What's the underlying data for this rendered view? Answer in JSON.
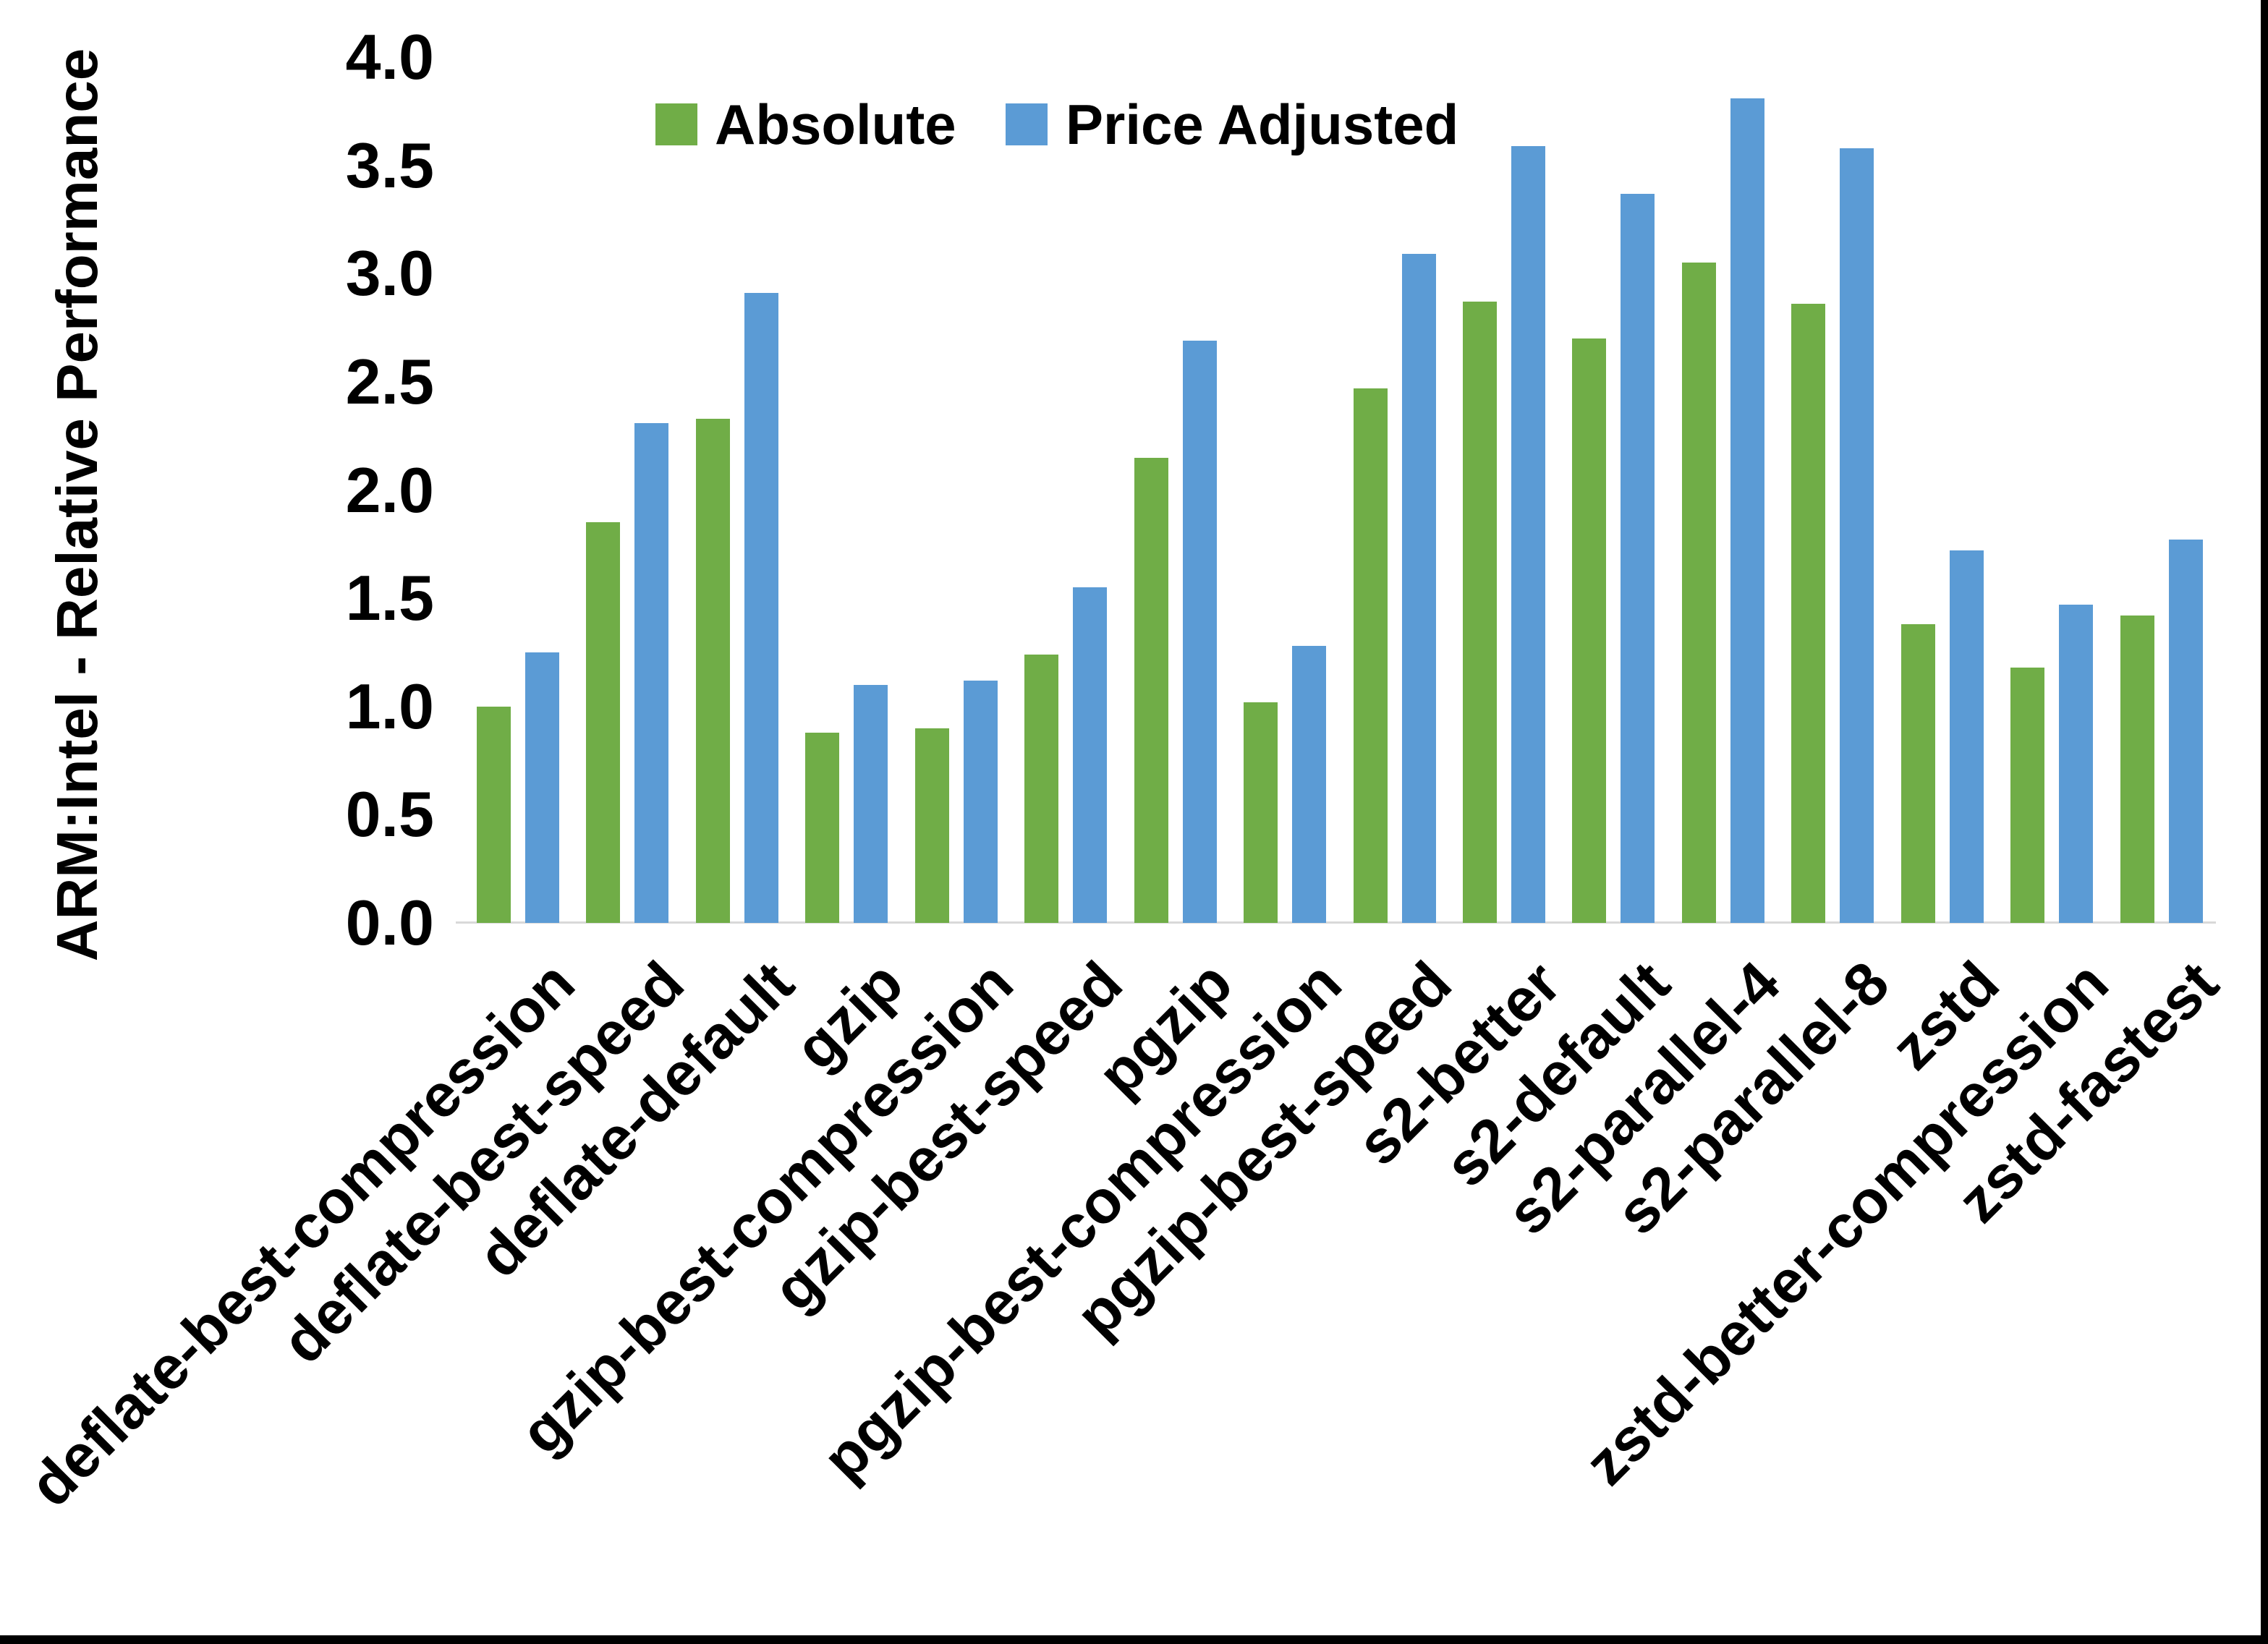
{
  "page": {
    "background": "#FFFFFF",
    "frame_color": "#000000"
  },
  "chart_data": {
    "type": "bar",
    "title": "",
    "ylabel": "ARM:Intel - Relative Performance",
    "xlabel": "",
    "ylim": [
      0.0,
      4.0
    ],
    "ytick_step": 0.5,
    "yticks": [
      "0.0",
      "0.5",
      "1.0",
      "1.5",
      "2.0",
      "2.5",
      "3.0",
      "3.5",
      "4.0"
    ],
    "grid": false,
    "legend_position": "top-center",
    "axis_line_color": "#D9D9D9",
    "categories": [
      "deflate-best-compression",
      "deflate-best-speed",
      "deflate-default",
      "gzip",
      "gzip-best-compression",
      "gzip-best-speed",
      "pgzip",
      "pgzip-best-compression",
      "pgzip-best-speed",
      "s2-better",
      "s2-default",
      "s2-parallel-4",
      "s2-parallel-8",
      "zstd",
      "zstd-better-compression",
      "zstd-fastest"
    ],
    "series": [
      {
        "name": "Absolute",
        "color": "#70AD47",
        "values": [
          1.0,
          1.85,
          2.33,
          0.88,
          0.9,
          1.24,
          2.15,
          1.02,
          2.47,
          2.87,
          2.7,
          3.05,
          2.86,
          1.38,
          1.18,
          1.42
        ]
      },
      {
        "name": "Price Adjusted",
        "color": "#5B9BD5",
        "values": [
          1.25,
          2.31,
          2.91,
          1.1,
          1.12,
          1.55,
          2.69,
          1.28,
          3.09,
          3.59,
          3.37,
          3.81,
          3.58,
          1.72,
          1.47,
          1.77
        ]
      }
    ]
  }
}
